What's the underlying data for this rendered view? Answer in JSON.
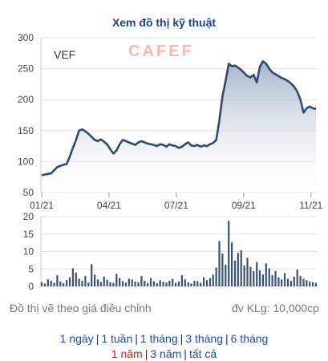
{
  "title": "Xem đồ thị kỹ thuật",
  "chart_data": {
    "type": "area",
    "ticker": "VEF",
    "watermark": "CAFEF",
    "price": {
      "ylim": [
        50,
        300
      ],
      "yticks": [
        "300",
        "250",
        "200",
        "150",
        "100",
        "50"
      ],
      "points": [
        [
          0,
          78
        ],
        [
          1,
          79
        ],
        [
          2,
          80
        ],
        [
          3,
          81
        ],
        [
          4,
          86
        ],
        [
          5,
          91
        ],
        [
          6,
          93
        ],
        [
          7,
          95
        ],
        [
          8,
          96
        ],
        [
          9,
          108
        ],
        [
          10,
          122
        ],
        [
          11,
          135
        ],
        [
          12,
          150
        ],
        [
          13,
          152
        ],
        [
          14,
          149
        ],
        [
          15,
          145
        ],
        [
          16,
          140
        ],
        [
          17,
          135
        ],
        [
          18,
          133
        ],
        [
          19,
          136
        ],
        [
          20,
          132
        ],
        [
          21,
          128
        ],
        [
          22,
          120
        ],
        [
          23,
          113
        ],
        [
          24,
          118
        ],
        [
          25,
          128
        ],
        [
          26,
          135
        ],
        [
          27,
          133
        ],
        [
          28,
          131
        ],
        [
          29,
          129
        ],
        [
          30,
          127
        ],
        [
          31,
          131
        ],
        [
          32,
          133
        ],
        [
          33,
          131
        ],
        [
          34,
          129
        ],
        [
          35,
          128
        ],
        [
          36,
          127
        ],
        [
          37,
          125
        ],
        [
          38,
          128
        ],
        [
          39,
          127
        ],
        [
          40,
          124
        ],
        [
          41,
          128
        ],
        [
          42,
          126
        ],
        [
          43,
          125
        ],
        [
          44,
          122
        ],
        [
          45,
          124
        ],
        [
          46,
          128
        ],
        [
          47,
          131
        ],
        [
          48,
          126
        ],
        [
          49,
          125
        ],
        [
          50,
          127
        ],
        [
          51,
          124
        ],
        [
          52,
          126
        ],
        [
          53,
          125
        ],
        [
          54,
          128
        ],
        [
          55,
          130
        ],
        [
          56,
          135
        ],
        [
          57,
          166
        ],
        [
          58,
          205
        ],
        [
          59,
          230
        ],
        [
          60,
          258
        ],
        [
          61,
          254
        ],
        [
          62,
          255
        ],
        [
          63,
          252
        ],
        [
          64,
          248
        ],
        [
          65,
          243
        ],
        [
          66,
          238
        ],
        [
          67,
          236
        ],
        [
          68,
          240
        ],
        [
          69,
          228
        ],
        [
          70,
          253
        ],
        [
          71,
          262
        ],
        [
          72,
          258
        ],
        [
          73,
          250
        ],
        [
          74,
          244
        ],
        [
          75,
          241
        ],
        [
          76,
          238
        ],
        [
          77,
          235
        ],
        [
          78,
          233
        ],
        [
          79,
          230
        ],
        [
          80,
          226
        ],
        [
          81,
          221
        ],
        [
          82,
          213
        ],
        [
          83,
          200
        ],
        [
          84,
          179
        ],
        [
          85,
          186
        ],
        [
          86,
          189
        ],
        [
          87,
          186
        ],
        [
          88,
          185
        ]
      ],
      "color": "#2f4a6d",
      "fill_top": "#9fb0c6"
    },
    "volume": {
      "ylim": [
        0,
        20
      ],
      "yticks": [
        "20",
        "15",
        "10",
        "5",
        "0"
      ],
      "values": [
        1.2,
        0.8,
        2.0,
        1.6,
        1.0,
        3.2,
        1.4,
        0.9,
        1.8,
        2.6,
        5.2,
        4.0,
        2.2,
        1.6,
        3.0,
        1.1,
        6.4,
        3.4,
        2.0,
        1.3,
        2.8,
        1.9,
        1.2,
        1.0,
        3.6,
        2.4,
        1.5,
        1.1,
        2.2,
        2.0,
        1.4,
        1.2,
        3.0,
        1.6,
        1.0,
        2.4,
        1.5,
        0.9,
        1.8,
        1.3,
        1.1,
        1.6,
        2.2,
        1.0,
        1.4,
        3.2,
        2.0,
        1.2,
        0.8,
        1.6,
        1.5,
        1.0,
        2.6,
        1.8,
        2.4,
        3.4,
        5.4,
        13.0,
        9.4,
        6.2,
        18.8,
        12.6,
        7.4,
        9.6,
        10.4,
        6.0,
        8.2,
        5.6,
        4.4,
        7.0,
        4.6,
        3.4,
        6.6,
        5.2,
        3.2,
        4.4,
        2.6,
        2.0,
        3.8,
        2.2,
        1.6,
        2.8,
        4.8,
        3.0,
        2.2,
        1.8,
        1.4,
        1.2,
        1.0
      ],
      "color": "#3a5275"
    },
    "x_ticks": [
      {
        "label": "01/21",
        "at": 0
      },
      {
        "label": "04/21",
        "at": 21.6
      },
      {
        "label": "07/21",
        "at": 43.2
      },
      {
        "label": "09/21",
        "at": 64.8
      },
      {
        "label": "11/21",
        "at": 86.4
      }
    ]
  },
  "footer": {
    "note_left": "Đồ thị vẽ theo giá điều chỉnh",
    "note_right": "đv KLg: 10,000cp"
  },
  "ranges": {
    "row1": [
      "1 ngày",
      "1 tuần",
      "1 tháng",
      "3 tháng",
      "6 tháng"
    ],
    "row2": [
      "1 năm",
      "3 năm",
      "tất cả"
    ],
    "active": "1 năm"
  },
  "separator": "|"
}
